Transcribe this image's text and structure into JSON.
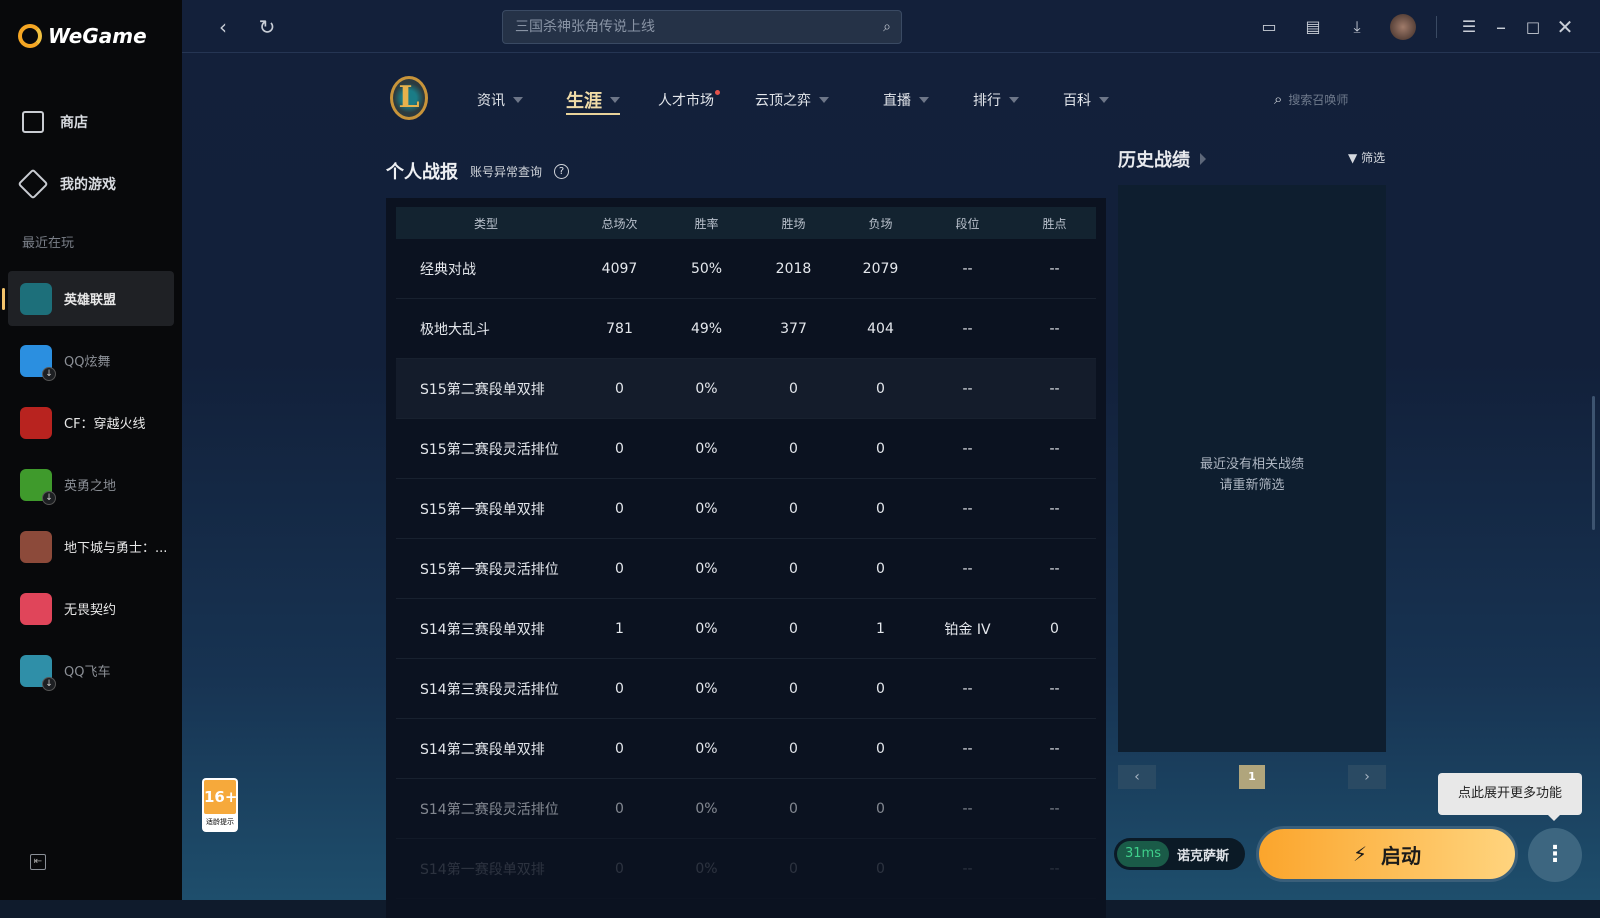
{
  "app": {
    "name": "WeGame"
  },
  "sidebar": {
    "nav": [
      {
        "label": "商店",
        "icon": "shop-bag-icon"
      },
      {
        "label": "我的游戏",
        "icon": "gamepad-icon"
      }
    ],
    "recent_label": "最近在玩",
    "games": [
      {
        "label": "英雄联盟",
        "active": true,
        "color": "#1d6f7a"
      },
      {
        "label": "QQ炫舞",
        "download": true,
        "color": "#2b8fe0"
      },
      {
        "label": "CF：穿越火线",
        "color": "#b8231f"
      },
      {
        "label": "英勇之地",
        "download": true,
        "color": "#3f9a2c"
      },
      {
        "label": "地下城与勇士：...",
        "color": "#8c4a3a"
      },
      {
        "label": "无畏契约",
        "color": "#e0455a"
      },
      {
        "label": "QQ飞车",
        "download": true,
        "color": "#2f8fa8"
      }
    ]
  },
  "topbar": {
    "search_placeholder": "三国杀神张角传说上线"
  },
  "game_nav": {
    "logo": "L",
    "items": [
      {
        "label": "资讯"
      },
      {
        "label": "生涯",
        "active": true
      },
      {
        "label": "人才市场",
        "dot": true
      },
      {
        "label": "云顶之弈"
      },
      {
        "label": "直播"
      },
      {
        "label": "排行"
      },
      {
        "label": "百科"
      }
    ],
    "search_placeholder": "搜索召唤师"
  },
  "stats": {
    "title": "个人战报",
    "link": "账号异常查询",
    "help": "?",
    "columns": [
      "类型",
      "总场次",
      "胜率",
      "胜场",
      "负场",
      "段位",
      "胜点"
    ],
    "rows": [
      [
        "经典对战",
        "4097",
        "50%",
        "2018",
        "2079",
        "--",
        "--"
      ],
      [
        "极地大乱斗",
        "781",
        "49%",
        "377",
        "404",
        "--",
        "--"
      ],
      [
        "S15第二赛段单双排",
        "0",
        "0%",
        "0",
        "0",
        "--",
        "--"
      ],
      [
        "S15第二赛段灵活排位",
        "0",
        "0%",
        "0",
        "0",
        "--",
        "--"
      ],
      [
        "S15第一赛段单双排",
        "0",
        "0%",
        "0",
        "0",
        "--",
        "--"
      ],
      [
        "S15第一赛段灵活排位",
        "0",
        "0%",
        "0",
        "0",
        "--",
        "--"
      ],
      [
        "S14第三赛段单双排",
        "1",
        "0%",
        "0",
        "1",
        "铂金 IV",
        "0"
      ],
      [
        "S14第三赛段灵活排位",
        "0",
        "0%",
        "0",
        "0",
        "--",
        "--"
      ],
      [
        "S14第二赛段单双排",
        "0",
        "0%",
        "0",
        "0",
        "--",
        "--"
      ],
      [
        "S14第二赛段灵活排位",
        "0",
        "0%",
        "0",
        "0",
        "--",
        "--"
      ],
      [
        "S14第一赛段单双排",
        "0",
        "0%",
        "0",
        "0",
        "--",
        "--"
      ]
    ]
  },
  "history": {
    "title": "历史战绩",
    "filter": "筛选",
    "empty_line1": "最近没有相关战绩",
    "empty_line2": "请重新筛选",
    "page": "1",
    "prev": "‹",
    "next": "›"
  },
  "bottom": {
    "age_rating": "16+",
    "age_sub": "适龄提示",
    "ping": "31ms",
    "server": "诺克萨斯",
    "launch": "启动",
    "more_tooltip": "点此展开更多功能",
    "accent": "#fba52c"
  }
}
